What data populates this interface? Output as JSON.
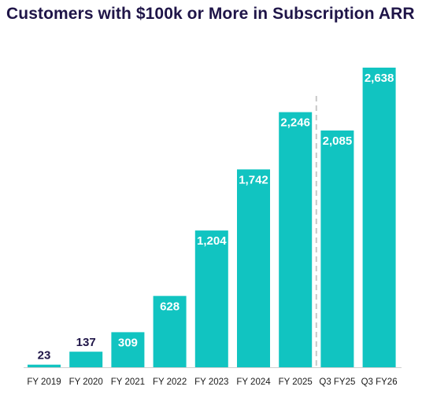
{
  "chart_data": {
    "type": "bar",
    "title": "Customers with $100k or More in Subscription ARR",
    "categories": [
      "FY 2019",
      "FY 2020",
      "FY 2021",
      "FY 2022",
      "FY 2023",
      "FY 2024",
      "FY 2025",
      "Q3 FY25",
      "Q3 FY26"
    ],
    "values": [
      23,
      137,
      309,
      628,
      1204,
      1742,
      2246,
      2085,
      2638
    ],
    "value_labels": [
      "23",
      "137",
      "309",
      "628",
      "1,204",
      "1,742",
      "2,246",
      "2,085",
      "2,638"
    ],
    "ylim": [
      0,
      2638
    ],
    "grid": false,
    "divider_after_category": "FY 2025",
    "colors": {
      "bar": "#11c4c1",
      "title": "#1f1548",
      "label_inside": "#ffffff",
      "label_outside": "#1f1548",
      "divider": "#c8c8c8",
      "axis": "#cfcfcf"
    }
  }
}
